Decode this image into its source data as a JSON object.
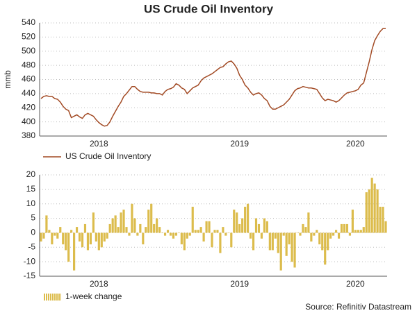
{
  "title": "US Crude Oil Inventory",
  "source": "Source: Refinitiv Datastream",
  "chart_data": [
    {
      "type": "line",
      "y_label": "mmb",
      "legend": "bottom-left",
      "grid": true,
      "ylim": [
        380,
        540
      ],
      "yticks": [
        380,
        400,
        420,
        440,
        460,
        480,
        500,
        520,
        540
      ],
      "categories": [
        null,
        null,
        null,
        null,
        null,
        null,
        null,
        null,
        null,
        null,
        null,
        null,
        null,
        null,
        null,
        null,
        null,
        null,
        null,
        null,
        null,
        "2018",
        null,
        null,
        null,
        null,
        null,
        null,
        null,
        null,
        null,
        null,
        null,
        null,
        null,
        null,
        null,
        null,
        null,
        null,
        null,
        null,
        null,
        null,
        null,
        null,
        null,
        null,
        null,
        null,
        null,
        null,
        null,
        null,
        null,
        null,
        null,
        null,
        null,
        null,
        null,
        null,
        null,
        null,
        null,
        null,
        null,
        null,
        null,
        null,
        null,
        null,
        "2019",
        null,
        null,
        null,
        null,
        null,
        null,
        null,
        null,
        null,
        null,
        null,
        null,
        null,
        null,
        null,
        null,
        null,
        null,
        null,
        null,
        null,
        null,
        null,
        null,
        null,
        null,
        null,
        null,
        null,
        null,
        null,
        null,
        null,
        null,
        null,
        null,
        null,
        null,
        null,
        null,
        null,
        "2020",
        null,
        null,
        null,
        null,
        null,
        null,
        null,
        null,
        null,
        null,
        null
      ],
      "series": [
        {
          "name": "US Crude Oil Inventory",
          "color": "#a24a24",
          "values": [
            433,
            436,
            437,
            436,
            436,
            433,
            432,
            428,
            422,
            418,
            416,
            406,
            408,
            410,
            407,
            405,
            410,
            412,
            410,
            408,
            403,
            399,
            396,
            394,
            395,
            400,
            408,
            415,
            422,
            428,
            436,
            440,
            445,
            450,
            450,
            446,
            443,
            442,
            442,
            442,
            441,
            441,
            440,
            440,
            438,
            443,
            446,
            447,
            449,
            454,
            452,
            448,
            446,
            440,
            444,
            448,
            450,
            452,
            458,
            462,
            464,
            466,
            468,
            471,
            474,
            477,
            478,
            482,
            485,
            486,
            482,
            476,
            466,
            460,
            452,
            448,
            442,
            438,
            440,
            441,
            438,
            433,
            430,
            422,
            418,
            418,
            420,
            422,
            424,
            428,
            432,
            438,
            444,
            447,
            448,
            450,
            449,
            448,
            448,
            447,
            446,
            440,
            434,
            430,
            432,
            431,
            430,
            428,
            430,
            434,
            438,
            441,
            442,
            443,
            444,
            446,
            452,
            455,
            470,
            485,
            502,
            515,
            522,
            528,
            532,
            532
          ]
        }
      ]
    },
    {
      "type": "bar",
      "legend": "bottom-left",
      "grid": true,
      "ylim": [
        -15,
        20
      ],
      "yticks": [
        -15,
        -10,
        -5,
        0,
        5,
        10,
        15,
        20
      ],
      "categories": [
        null,
        null,
        null,
        null,
        null,
        null,
        null,
        null,
        null,
        null,
        null,
        null,
        null,
        null,
        null,
        null,
        null,
        null,
        null,
        null,
        null,
        "2018",
        null,
        null,
        null,
        null,
        null,
        null,
        null,
        null,
        null,
        null,
        null,
        null,
        null,
        null,
        null,
        null,
        null,
        null,
        null,
        null,
        null,
        null,
        null,
        null,
        null,
        null,
        null,
        null,
        null,
        null,
        null,
        null,
        null,
        null,
        null,
        null,
        null,
        null,
        null,
        null,
        null,
        null,
        null,
        null,
        null,
        null,
        null,
        null,
        null,
        null,
        "2019",
        null,
        null,
        null,
        null,
        null,
        null,
        null,
        null,
        null,
        null,
        null,
        null,
        null,
        null,
        null,
        null,
        null,
        null,
        null,
        null,
        null,
        null,
        null,
        null,
        null,
        null,
        null,
        null,
        null,
        null,
        null,
        null,
        null,
        null,
        null,
        null,
        null,
        null,
        null,
        null,
        null,
        "2020",
        null,
        null,
        null,
        null,
        null,
        null,
        null,
        null,
        null,
        null,
        null
      ],
      "series": [
        {
          "name": "1-week change",
          "color": "#dcbc4c",
          "values": [
            -3,
            -2,
            6,
            1,
            -4,
            -1,
            -2,
            2,
            -4,
            -6,
            -10,
            1,
            -13,
            2,
            -3,
            -5,
            3,
            -6,
            -4,
            7,
            -3,
            -6,
            -5,
            -3,
            -2,
            3,
            5,
            6,
            2,
            7,
            8,
            2,
            -1,
            10,
            5,
            -1,
            3,
            -4,
            2,
            8,
            10,
            3,
            5,
            2,
            0,
            -1,
            1,
            -1,
            -2,
            -1,
            0,
            -4,
            -6,
            -2,
            -1,
            9,
            1,
            1,
            2,
            -3,
            4,
            4,
            -5,
            1,
            1,
            -7,
            2,
            -1,
            0,
            -5,
            8,
            7,
            3,
            5,
            9,
            10,
            -2,
            -6,
            5,
            3,
            -2,
            5,
            4,
            -6,
            -6,
            -2,
            -7,
            -13,
            -1,
            -8,
            -4,
            -10,
            -12,
            0,
            -1,
            3,
            2,
            7,
            -3,
            -1,
            1,
            -4,
            -6,
            -11,
            -6,
            -2,
            -1,
            1,
            -2,
            3,
            3,
            3,
            -1,
            8,
            1,
            1,
            1,
            2,
            14,
            15,
            19,
            17,
            15,
            9,
            9,
            4
          ]
        }
      ]
    }
  ]
}
